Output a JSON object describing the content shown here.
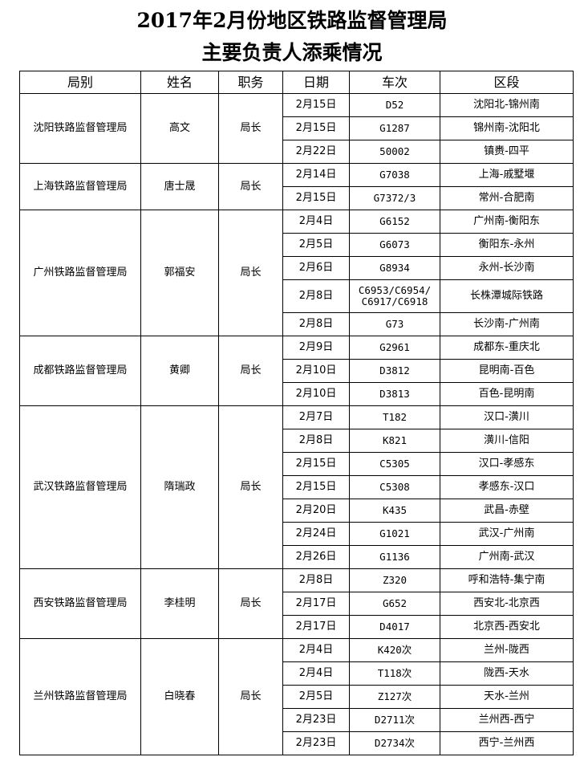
{
  "title_line1": "2017年2月份地区铁路监督管理局",
  "title_line2": "主要负责人添乘情况",
  "headers": [
    "局别",
    "姓名",
    "职务",
    "日期",
    "车次",
    "区段"
  ],
  "bureaus": [
    {
      "bureau": "沈阳铁路监督管理局",
      "name": "高文",
      "position": "局长",
      "trips": [
        {
          "date": "2月15日",
          "train": "D52",
          "section": "沈阳北-锦州南"
        },
        {
          "date": "2月15日",
          "train": "G1287",
          "section": "锦州南-沈阳北"
        },
        {
          "date": "2月22日",
          "train": "50002",
          "section": "镇赉-四平"
        }
      ]
    },
    {
      "bureau": "上海铁路监督管理局",
      "name": "唐士晟",
      "position": "局长",
      "trips": [
        {
          "date": "2月14日",
          "train": "G7038",
          "section": "上海-戚墅堰"
        },
        {
          "date": "2月15日",
          "train": "G7372/3",
          "section": "常州-合肥南"
        }
      ]
    },
    {
      "bureau": "广州铁路监督管理局",
      "name": "郭福安",
      "position": "局长",
      "trips": [
        {
          "date": "2月4日",
          "train": "G6152",
          "section": "广州南-衡阳东"
        },
        {
          "date": "2月5日",
          "train": "G6073",
          "section": "衡阳东-永州"
        },
        {
          "date": "2月6日",
          "train": "G8934",
          "section": "永州-长沙南"
        },
        {
          "date": "2月8日",
          "train": "C6953/C6954/ C6917/C6918",
          "section": "长株潭城际铁路"
        },
        {
          "date": "2月8日",
          "train": "G73",
          "section": "长沙南-广州南"
        }
      ]
    },
    {
      "bureau": "成都铁路监督管理局",
      "name": "黄卿",
      "position": "局长",
      "trips": [
        {
          "date": "2月9日",
          "train": "G2961",
          "section": "成都东-重庆北"
        },
        {
          "date": "2月10日",
          "train": "D3812",
          "section": "昆明南-百色"
        },
        {
          "date": "2月10日",
          "train": "D3813",
          "section": "百色-昆明南"
        }
      ]
    },
    {
      "bureau": "武汉铁路监督管理局",
      "name": "隋瑞政",
      "position": "局长",
      "trips": [
        {
          "date": "2月7日",
          "train": "T182",
          "section": "汉口-潢川"
        },
        {
          "date": "2月8日",
          "train": "K821",
          "section": "潢川-信阳"
        },
        {
          "date": "2月15日",
          "train": "C5305",
          "section": "汉口-孝感东"
        },
        {
          "date": "2月15日",
          "train": "C5308",
          "section": "孝感东-汉口"
        },
        {
          "date": "2月20日",
          "train": "K435",
          "section": "武昌-赤壁"
        },
        {
          "date": "2月24日",
          "train": "G1021",
          "section": "武汉-广州南"
        },
        {
          "date": "2月26日",
          "train": "G1136",
          "section": "广州南-武汉"
        }
      ]
    },
    {
      "bureau": "西安铁路监督管理局",
      "name": "李桂明",
      "position": "局长",
      "trips": [
        {
          "date": "2月8日",
          "train": "Z320",
          "section": "呼和浩特-集宁南"
        },
        {
          "date": "2月17日",
          "train": "G652",
          "section": "西安北-北京西"
        },
        {
          "date": "2月17日",
          "train": "D4017",
          "section": "北京西-西安北"
        }
      ]
    },
    {
      "bureau": "兰州铁路监督管理局",
      "name": "白晓春",
      "position": "局长",
      "trips": [
        {
          "date": "2月4日",
          "train": "K420次",
          "section": "兰州-陇西"
        },
        {
          "date": "2月4日",
          "train": "T118次",
          "section": "陇西-天水"
        },
        {
          "date": "2月5日",
          "train": "Z127次",
          "section": "天水-兰州"
        },
        {
          "date": "2月23日",
          "train": "D2711次",
          "section": "兰州西-西宁"
        },
        {
          "date": "2月23日",
          "train": "D2734次",
          "section": "西宁-兰州西"
        }
      ]
    }
  ]
}
